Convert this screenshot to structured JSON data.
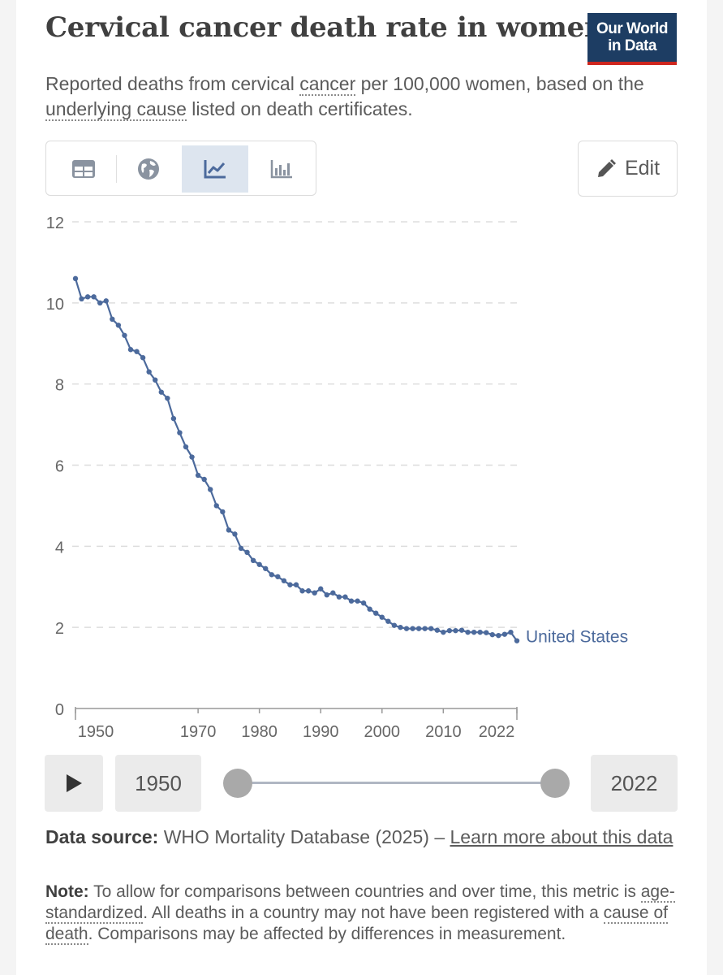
{
  "header": {
    "title": "Cervical cancer death rate in women",
    "logo_line1": "Our World",
    "logo_line2": "in Data",
    "subtitle_part1": "Reported deaths from cervical ",
    "subtitle_link1": "cancer",
    "subtitle_part2": " per 100,000 women, based on the ",
    "subtitle_link2": "underlying cause",
    "subtitle_part3": " listed on death certificates."
  },
  "toolbar": {
    "tabs": [
      "table",
      "map",
      "chart",
      "bar"
    ],
    "active_tab": "chart",
    "edit_label": "Edit"
  },
  "timeline": {
    "start_label": "1950",
    "end_label": "2022"
  },
  "footer": {
    "source_label": "Data source:",
    "source_text": " WHO Mortality Database (2025) – ",
    "source_link": "Learn more about this data",
    "note_label": "Note:",
    "note_part1": " To allow for comparisons between countries and over time, this metric is ",
    "note_link1": "age-standardized",
    "note_part2": ". All deaths in a country may not have been registered with a ",
    "note_link2": "cause of death",
    "note_part3": ". Comparisons may be affected by differences in measurement."
  },
  "colors": {
    "line": "#4c6a9c",
    "grid": "#dddddd",
    "title": "#404040",
    "logo_bg": "#1d3d63",
    "logo_accent": "#ce261e"
  },
  "chart_data": {
    "type": "line",
    "title": "Cervical cancer death rate in women",
    "xlabel": "",
    "ylabel": "",
    "xlim": [
      1950,
      2022
    ],
    "ylim": [
      0,
      12
    ],
    "yticks": [
      0,
      2,
      4,
      6,
      8,
      10,
      12
    ],
    "xticks": [
      1950,
      1970,
      1980,
      1990,
      2000,
      2010,
      2022
    ],
    "grid": true,
    "series": [
      {
        "name": "United States",
        "color": "#4c6a9c",
        "x": [
          1950,
          1951,
          1952,
          1953,
          1954,
          1955,
          1956,
          1957,
          1958,
          1959,
          1960,
          1961,
          1962,
          1963,
          1964,
          1965,
          1966,
          1967,
          1968,
          1969,
          1970,
          1971,
          1972,
          1973,
          1974,
          1975,
          1976,
          1977,
          1978,
          1979,
          1980,
          1981,
          1982,
          1983,
          1984,
          1985,
          1986,
          1987,
          1988,
          1989,
          1990,
          1991,
          1992,
          1993,
          1994,
          1995,
          1996,
          1997,
          1998,
          1999,
          2000,
          2001,
          2002,
          2003,
          2004,
          2005,
          2006,
          2007,
          2008,
          2009,
          2010,
          2011,
          2012,
          2013,
          2014,
          2015,
          2016,
          2017,
          2018,
          2019,
          2020,
          2021,
          2022
        ],
        "y": [
          10.6,
          10.1,
          10.15,
          10.15,
          10.0,
          10.05,
          9.6,
          9.45,
          9.2,
          8.85,
          8.8,
          8.65,
          8.3,
          8.1,
          7.8,
          7.65,
          7.15,
          6.8,
          6.45,
          6.2,
          5.75,
          5.65,
          5.4,
          5.0,
          4.85,
          4.4,
          4.3,
          3.95,
          3.85,
          3.65,
          3.55,
          3.45,
          3.3,
          3.25,
          3.15,
          3.05,
          3.05,
          2.9,
          2.9,
          2.85,
          2.95,
          2.8,
          2.85,
          2.75,
          2.75,
          2.65,
          2.65,
          2.6,
          2.45,
          2.35,
          2.25,
          2.15,
          2.05,
          2.0,
          1.97,
          1.97,
          1.97,
          1.97,
          1.97,
          1.93,
          1.88,
          1.92,
          1.92,
          1.93,
          1.88,
          1.88,
          1.88,
          1.87,
          1.82,
          1.8,
          1.83,
          1.88,
          1.67
        ]
      }
    ]
  }
}
